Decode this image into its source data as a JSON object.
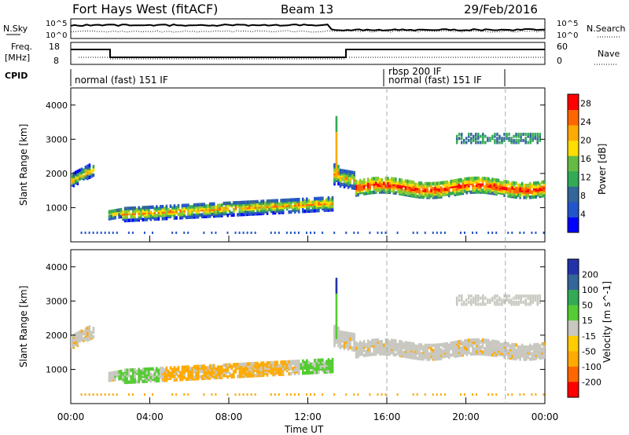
{
  "header": {
    "station": "Fort Hays West (fitACF)",
    "beam": "Beam 13",
    "date": "29/Feb/2016"
  },
  "left_labels": {
    "nsky": "N.Sky",
    "freq": "Freq.",
    "freq_unit": "[MHz]",
    "cpid": "CPID",
    "nsky_ticks": [
      "10^5",
      "10^0"
    ],
    "freq_ticks": [
      "18",
      "8"
    ]
  },
  "right_labels": {
    "nsearch": "N.Search",
    "nave": "Nave",
    "nsearch_ticks": [
      "10^5",
      "10^0"
    ],
    "nave_ticks": [
      "60",
      "0"
    ]
  },
  "cpid_labels": [
    {
      "text": "normal (fast) 151 IF",
      "hour": 0.1
    },
    {
      "text": "rbsp 200 IF",
      "hour": 16.0
    },
    {
      "text": "normal (fast) 151 IF",
      "hour": 16.0
    }
  ],
  "mode_boundaries_hours": [
    16,
    22
  ],
  "chart_data": [
    {
      "type": "heatmap",
      "name": "power",
      "ylabel": "Slant Range [km]",
      "xlabel": "",
      "ylim": [
        0,
        4500
      ],
      "yticks": [
        1000,
        2000,
        3000,
        4000
      ],
      "xlim": [
        0,
        24
      ],
      "colorbar": {
        "label": "Power [dB]",
        "ticks": [
          4,
          8,
          12,
          16,
          20,
          24,
          28
        ],
        "range": [
          0,
          30
        ]
      },
      "colors": {
        "low": "#0000ff",
        "mid": "#33aa55",
        "high": "#ffdd00",
        "top": "#ff0000"
      }
    },
    {
      "type": "heatmap",
      "name": "velocity",
      "ylabel": "Slant Range [km]",
      "xlabel": "Time UT",
      "ylim": [
        0,
        4500
      ],
      "yticks": [
        1000,
        2000,
        3000,
        4000
      ],
      "xlim": [
        0,
        24
      ],
      "xticks": [
        "00:00",
        "04:00",
        "08:00",
        "12:00",
        "16:00",
        "20:00",
        "00:00"
      ],
      "colorbar": {
        "label": "Velocity [m s^-1]",
        "ticks": [
          "200",
          "100",
          "50",
          "15",
          "-15",
          "-50",
          "-100",
          "-200"
        ]
      },
      "colors": {
        "pos_high": "#2233aa",
        "pos_low": "#55cc33",
        "zero": "#c8c8c0",
        "neg_low": "#ffaa00",
        "neg_high": "#ff0000"
      }
    }
  ]
}
